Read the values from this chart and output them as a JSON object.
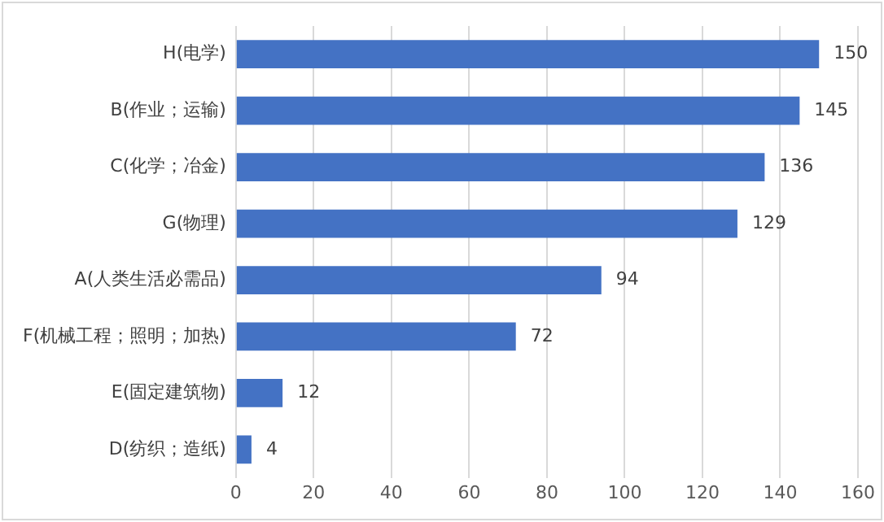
{
  "chart_data": {
    "type": "bar",
    "orientation": "horizontal",
    "categories": [
      "H(电学)",
      "B(作业；运输)",
      "C(化学；冶金)",
      "G(物理)",
      "A(人类生活必需品)",
      "F(机械工程；照明；加热)",
      "E(固定建筑物)",
      "D(纺织；造纸)"
    ],
    "values": [
      150,
      145,
      136,
      129,
      94,
      72,
      12,
      4
    ],
    "color": "#4472c4",
    "xlim": [
      0,
      160
    ],
    "xticks": [
      0,
      20,
      40,
      60,
      80,
      100,
      120,
      140,
      160
    ],
    "grid": "x",
    "data_labels": true
  }
}
